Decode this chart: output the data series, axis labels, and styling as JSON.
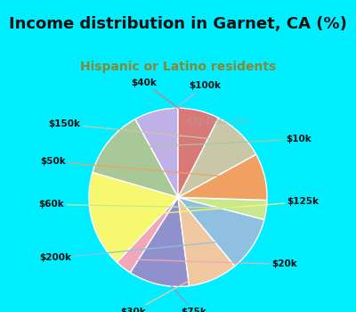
{
  "title": "Income distribution in Garnet, CA (%)",
  "subtitle": "Hispanic or Latino residents",
  "watermark": "© City-Data.com",
  "background_top": "#00eeff",
  "background_chart_color": "#e8f5ee",
  "title_color": "#111111",
  "subtitle_color": "#888833",
  "labels": [
    "$100k",
    "$10k",
    "$125k",
    "$20k",
    "$75k",
    "$30k",
    "$200k",
    "$60k",
    "$50k",
    "$150k",
    "$40k"
  ],
  "sizes": [
    8.0,
    12.5,
    17.5,
    3.0,
    11.0,
    9.0,
    10.0,
    3.5,
    8.5,
    9.5,
    7.5
  ],
  "colors": [
    "#c0b0e8",
    "#a8c898",
    "#f8f870",
    "#f0a8b8",
    "#9090cc",
    "#f0c8a0",
    "#90c0e0",
    "#c8e890",
    "#f0a060",
    "#c8c8a8",
    "#d87878"
  ],
  "startangle": 90,
  "title_fontsize": 13,
  "subtitle_fontsize": 10,
  "label_fontsize": 7.5,
  "wedge_linewidth": 1.0,
  "wedge_edgecolor": "white"
}
